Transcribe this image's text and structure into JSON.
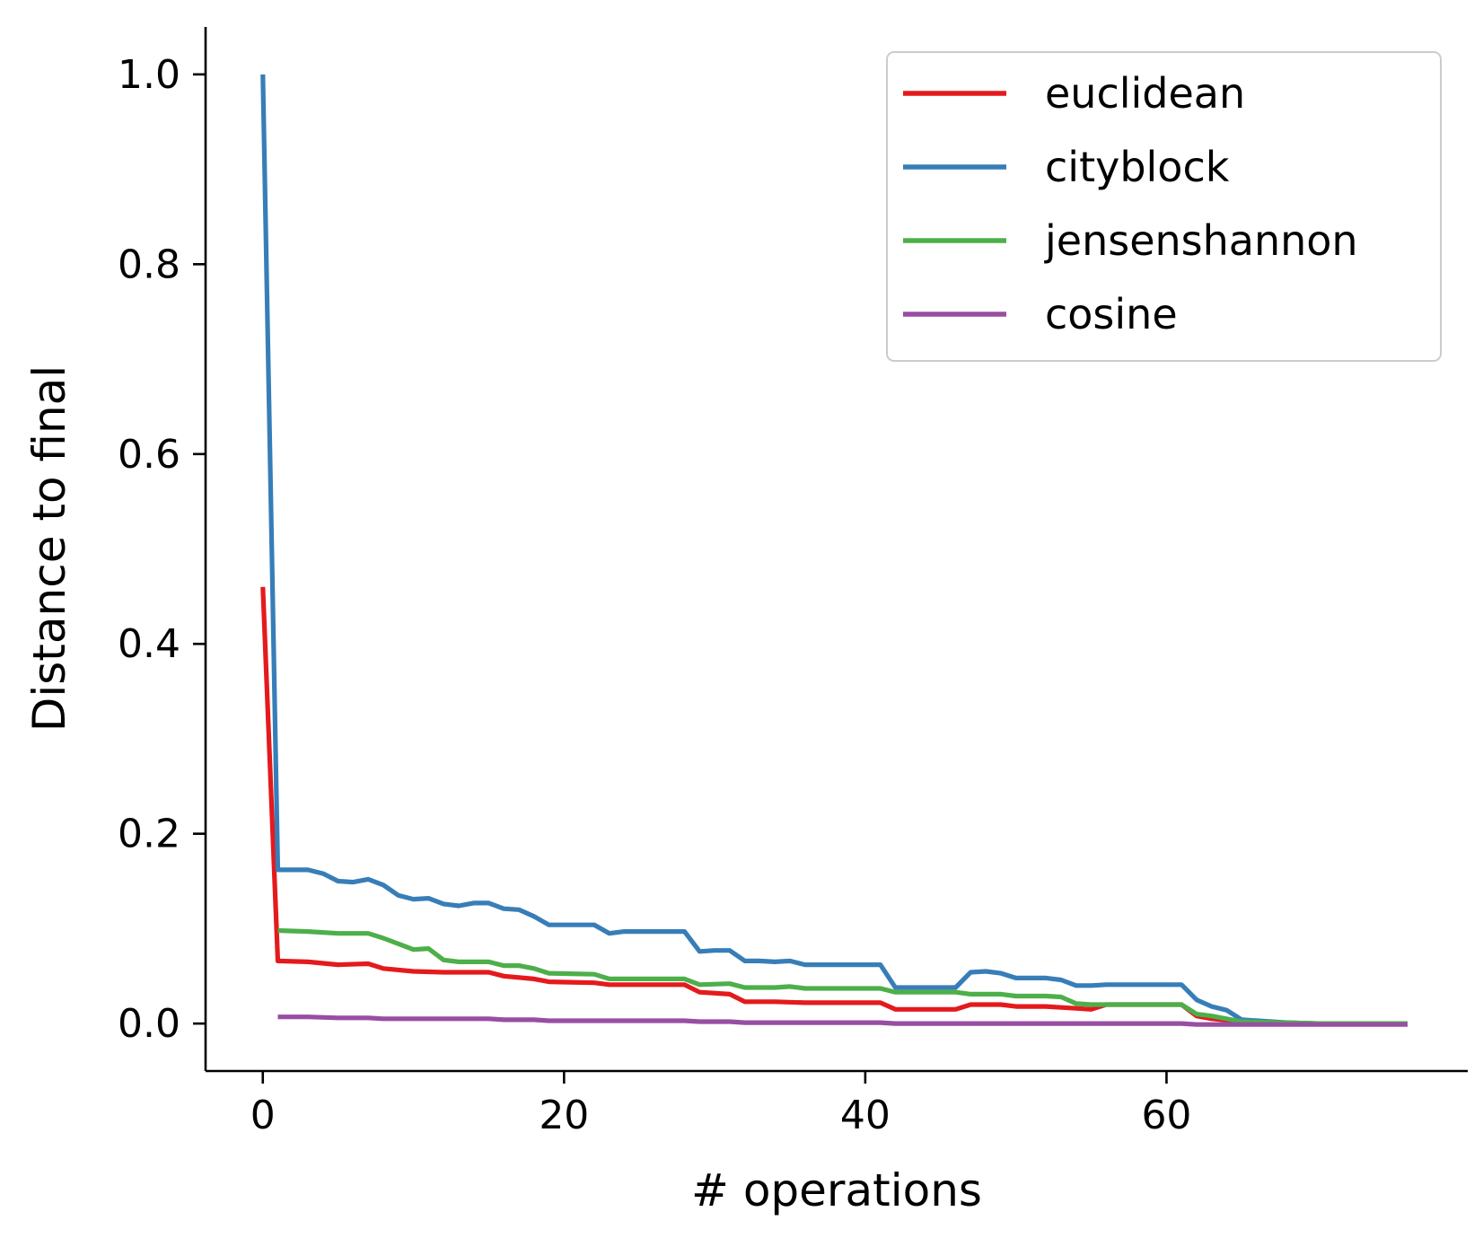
{
  "chart_data": {
    "type": "line",
    "title": "",
    "xlabel": "# operations",
    "ylabel": "Distance to final",
    "xlim": [
      -3.8,
      80
    ],
    "ylim": [
      -0.05,
      1.05
    ],
    "xticks": [
      0,
      20,
      40,
      60
    ],
    "xtick_labels": [
      "0",
      "20",
      "40",
      "60"
    ],
    "yticks": [
      0.0,
      0.2,
      0.4,
      0.6,
      0.8,
      1.0
    ],
    "ytick_labels": [
      "0.0",
      "0.2",
      "0.4",
      "0.6",
      "0.8",
      "1.0"
    ],
    "grid": false,
    "legend_position": "top-right",
    "series": [
      {
        "name": "euclidean",
        "color": "#e41a1c",
        "x": [
          0,
          1,
          3,
          5,
          7,
          8,
          10,
          12,
          15,
          16,
          18,
          19,
          22,
          23,
          28,
          29,
          31,
          32,
          34,
          36,
          41,
          42,
          46,
          47,
          49,
          50,
          52,
          53,
          54,
          55,
          56,
          57,
          61,
          62,
          63,
          65,
          70,
          76
        ],
        "y": [
          0.46,
          0.066,
          0.065,
          0.062,
          0.063,
          0.058,
          0.055,
          0.054,
          0.054,
          0.05,
          0.047,
          0.044,
          0.043,
          0.041,
          0.041,
          0.033,
          0.031,
          0.023,
          0.023,
          0.022,
          0.022,
          0.015,
          0.015,
          0.02,
          0.02,
          0.018,
          0.018,
          0.017,
          0.016,
          0.015,
          0.02,
          0.02,
          0.02,
          0.008,
          0.005,
          0.002,
          0.0,
          0.0
        ]
      },
      {
        "name": "cityblock",
        "color": "#377eb8",
        "x": [
          0,
          1,
          3,
          4,
          5,
          6,
          7,
          8,
          9,
          10,
          11,
          12,
          13,
          14,
          15,
          16,
          17,
          18,
          19,
          22,
          23,
          24,
          28,
          29,
          30,
          31,
          32,
          33,
          34,
          35,
          36,
          41,
          42,
          46,
          47,
          48,
          49,
          50,
          52,
          53,
          54,
          55,
          56,
          61,
          62,
          63,
          64,
          65,
          68,
          70,
          76
        ],
        "y": [
          1.0,
          0.162,
          0.162,
          0.158,
          0.15,
          0.149,
          0.152,
          0.146,
          0.135,
          0.131,
          0.132,
          0.126,
          0.124,
          0.127,
          0.127,
          0.121,
          0.12,
          0.113,
          0.104,
          0.104,
          0.095,
          0.097,
          0.097,
          0.076,
          0.077,
          0.077,
          0.066,
          0.066,
          0.065,
          0.066,
          0.062,
          0.062,
          0.038,
          0.038,
          0.054,
          0.055,
          0.053,
          0.048,
          0.048,
          0.046,
          0.04,
          0.04,
          0.041,
          0.041,
          0.025,
          0.018,
          0.014,
          0.004,
          0.001,
          0.0,
          0.0
        ]
      },
      {
        "name": "jensenshannon",
        "color": "#4daf4a",
        "x": [
          1,
          3,
          5,
          7,
          8,
          9,
          10,
          11,
          12,
          13,
          15,
          16,
          17,
          18,
          19,
          22,
          23,
          28,
          29,
          31,
          32,
          34,
          35,
          36,
          41,
          42,
          46,
          47,
          49,
          50,
          52,
          53,
          54,
          55,
          56,
          61,
          62,
          63,
          65,
          70,
          76
        ],
        "y": [
          0.098,
          0.097,
          0.095,
          0.095,
          0.09,
          0.084,
          0.078,
          0.079,
          0.067,
          0.065,
          0.065,
          0.061,
          0.061,
          0.058,
          0.053,
          0.052,
          0.047,
          0.047,
          0.041,
          0.042,
          0.038,
          0.038,
          0.039,
          0.037,
          0.037,
          0.033,
          0.033,
          0.031,
          0.031,
          0.029,
          0.029,
          0.028,
          0.021,
          0.02,
          0.02,
          0.02,
          0.01,
          0.008,
          0.002,
          0.0,
          0.0
        ]
      },
      {
        "name": "cosine",
        "color": "#984ea3",
        "x": [
          1,
          3,
          5,
          7,
          8,
          10,
          12,
          15,
          16,
          18,
          19,
          22,
          23,
          28,
          29,
          31,
          32,
          41,
          42,
          61,
          62,
          76
        ],
        "y": [
          0.007,
          0.007,
          0.006,
          0.006,
          0.005,
          0.005,
          0.005,
          0.005,
          0.004,
          0.004,
          0.003,
          0.003,
          0.003,
          0.003,
          0.002,
          0.002,
          0.001,
          0.001,
          0.0,
          0.0,
          -0.001,
          -0.001
        ]
      }
    ]
  }
}
